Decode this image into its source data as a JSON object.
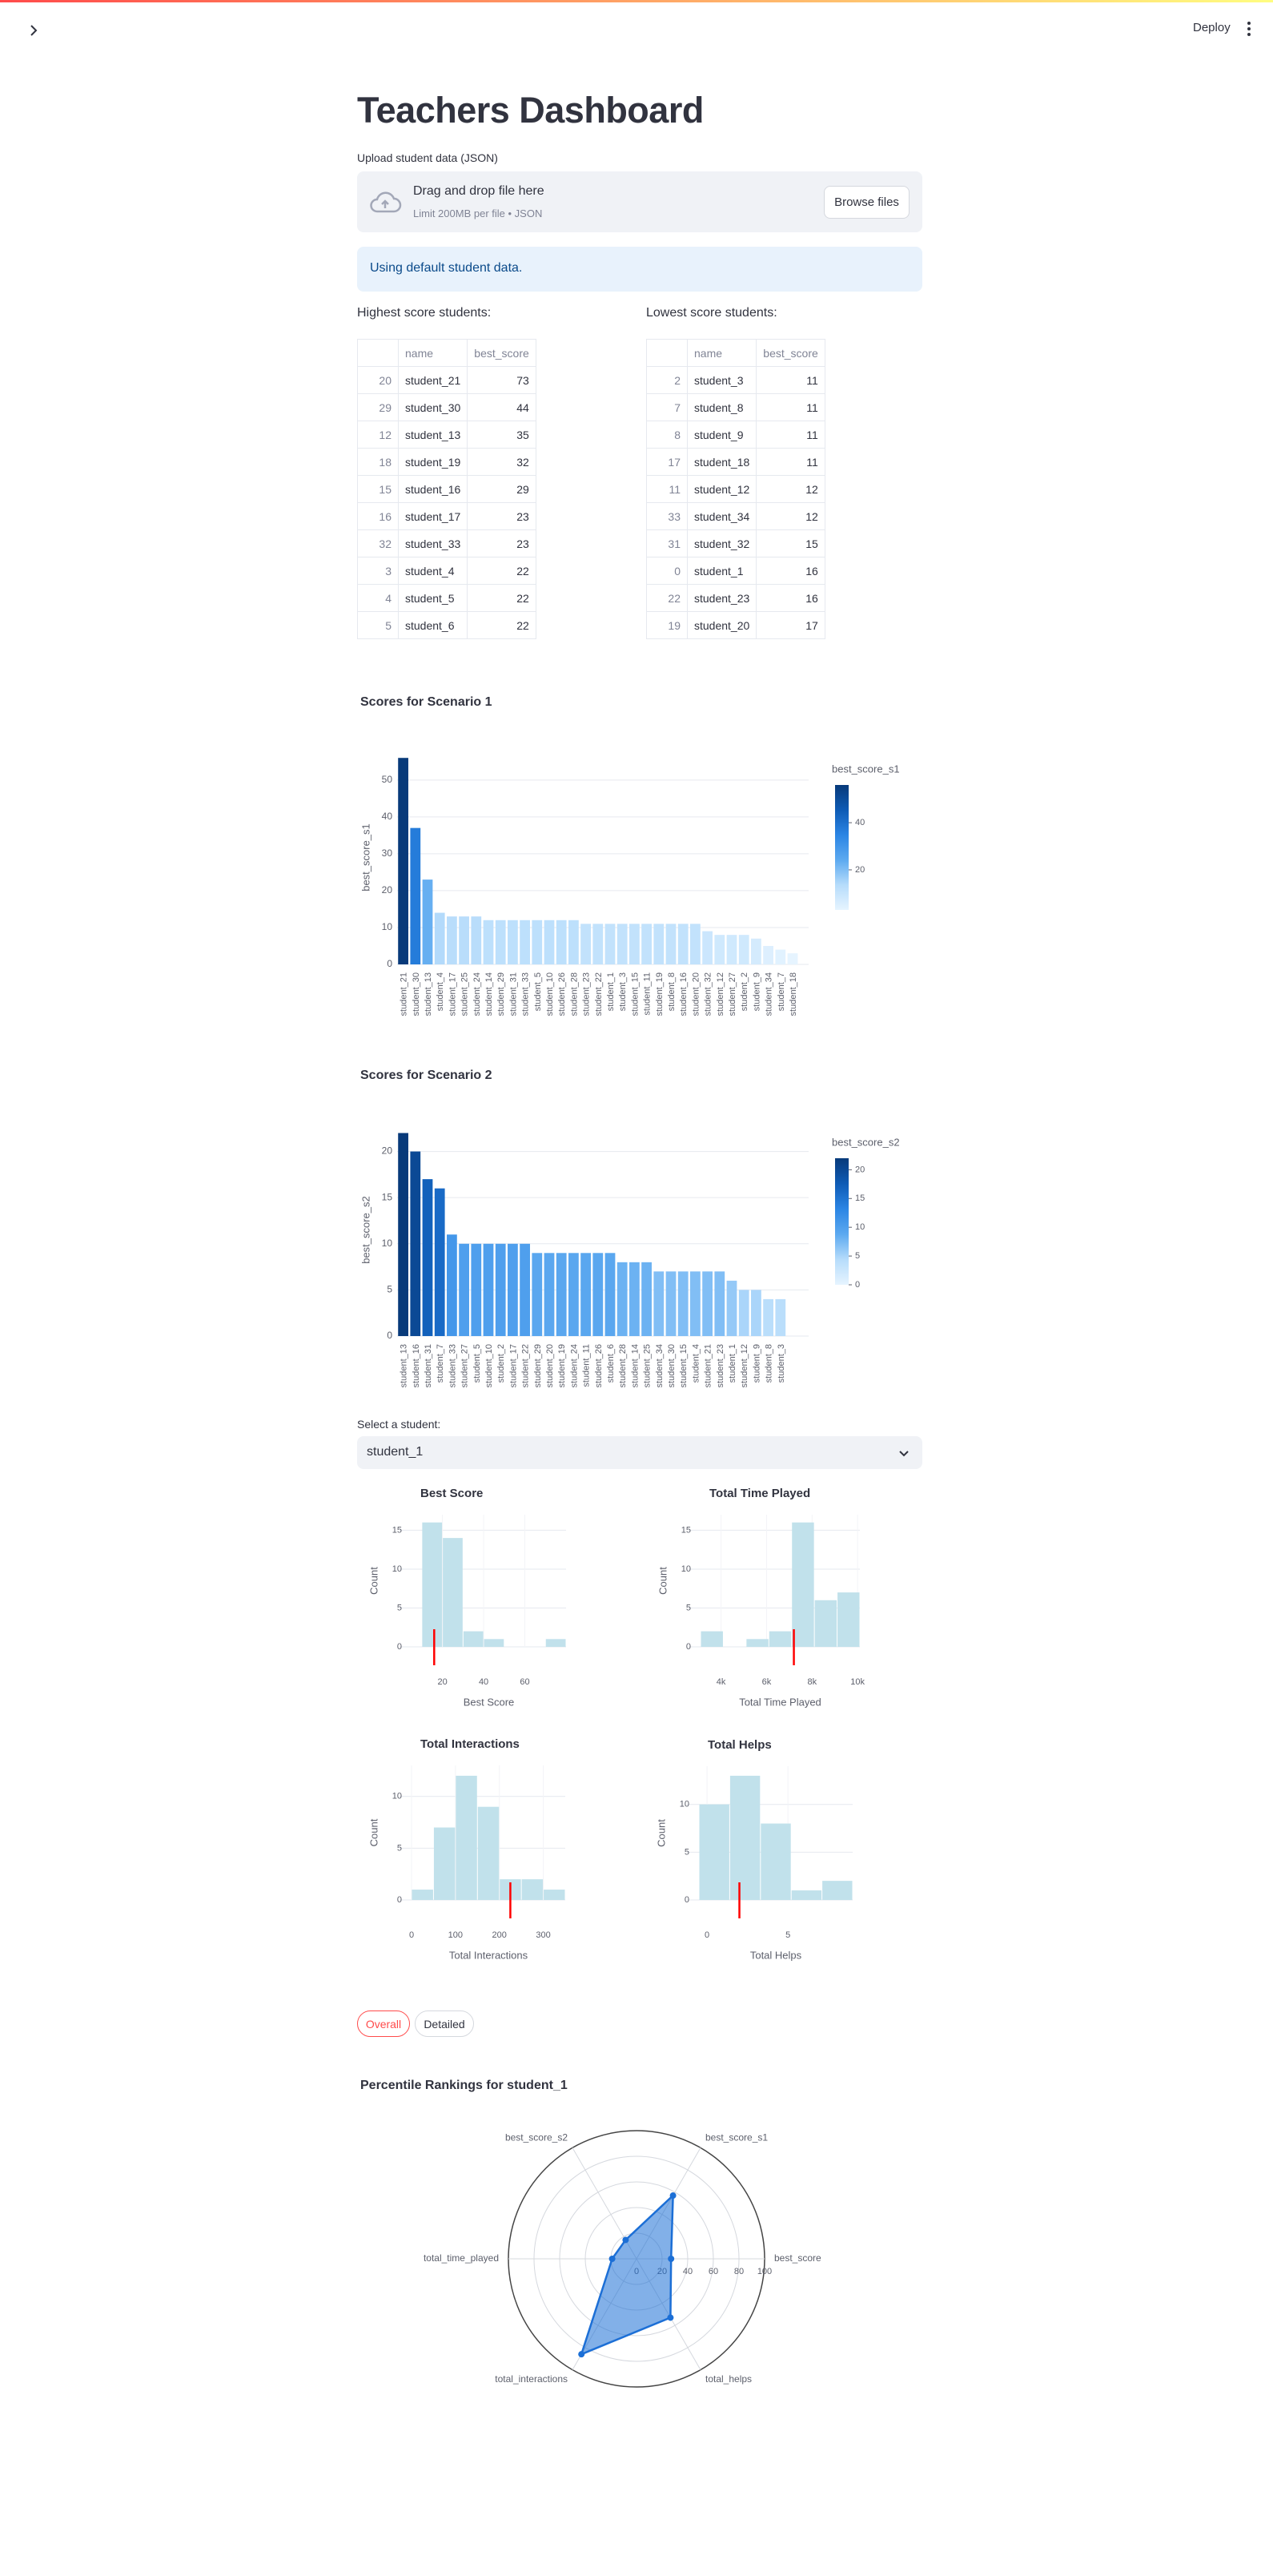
{
  "header": {
    "deploy": "Deploy"
  },
  "title": "Teachers Dashboard",
  "uploader": {
    "label": "Upload student data (JSON)",
    "drop_text": "Drag and drop file here",
    "limit": "Limit 200MB per file • JSON",
    "button": "Browse files"
  },
  "info": "Using default student data.",
  "tables": [
    {
      "caption": "Highest score students:",
      "columns": [
        "name",
        "best_score"
      ],
      "rows": [
        [
          20,
          "student_21",
          73
        ],
        [
          29,
          "student_30",
          44
        ],
        [
          12,
          "student_13",
          35
        ],
        [
          18,
          "student_19",
          32
        ],
        [
          15,
          "student_16",
          29
        ],
        [
          16,
          "student_17",
          23
        ],
        [
          32,
          "student_33",
          23
        ],
        [
          3,
          "student_4",
          22
        ],
        [
          4,
          "student_5",
          22
        ],
        [
          5,
          "student_6",
          22
        ]
      ]
    },
    {
      "caption": "Lowest score students:",
      "columns": [
        "name",
        "best_score"
      ],
      "rows": [
        [
          2,
          "student_3",
          11
        ],
        [
          7,
          "student_8",
          11
        ],
        [
          8,
          "student_9",
          11
        ],
        [
          17,
          "student_18",
          11
        ],
        [
          11,
          "student_12",
          12
        ],
        [
          33,
          "student_34",
          12
        ],
        [
          31,
          "student_32",
          15
        ],
        [
          0,
          "student_1",
          16
        ],
        [
          22,
          "student_23",
          16
        ],
        [
          19,
          "student_20",
          17
        ]
      ]
    }
  ],
  "charts": [
    {
      "type": "bar",
      "title": "Scores for Scenario 1",
      "ylabel": "best_score_s1",
      "categories": [
        "student_21",
        "student_30",
        "student_13",
        "student_4",
        "student_17",
        "student_25",
        "student_24",
        "student_14",
        "student_29",
        "student_31",
        "student_33",
        "student_5",
        "student_10",
        "student_26",
        "student_28",
        "student_23",
        "student_22",
        "student_1",
        "student_3",
        "student_15",
        "student_11",
        "student_19",
        "student_8",
        "student_16",
        "student_20",
        "student_32",
        "student_12",
        "student_27",
        "student_2",
        "student_9",
        "student_34",
        "student_7",
        "student_18"
      ],
      "values": [
        56,
        37,
        23,
        14,
        13,
        13,
        13,
        12,
        12,
        12,
        12,
        12,
        12,
        12,
        12,
        11,
        11,
        11,
        11,
        11,
        11,
        11,
        11,
        11,
        11,
        9,
        8,
        8,
        8,
        7,
        5,
        4,
        3
      ],
      "ylim": [
        0,
        58
      ],
      "yticks": [
        0,
        10,
        20,
        30,
        40,
        50
      ],
      "grid": true,
      "colorbar": {
        "title": "best_score_s1",
        "clim": [
          3,
          56
        ],
        "ticks": [
          20,
          40
        ],
        "colorscale": [
          "#e6f4ff",
          "#b6dcfb",
          "#5ca9f0",
          "#2b85e4",
          "#0e5bb5",
          "#083a7a"
        ]
      }
    },
    {
      "type": "bar",
      "title": "Scores for Scenario 2",
      "ylabel": "best_score_s2",
      "categories": [
        "student_13",
        "student_16",
        "student_31",
        "student_7",
        "student_33",
        "student_27",
        "student_5",
        "student_10",
        "student_2",
        "student_17",
        "student_22",
        "student_29",
        "student_20",
        "student_19",
        "student_24",
        "student_11",
        "student_26",
        "student_6",
        "student_28",
        "student_14",
        "student_25",
        "student_34",
        "student_30",
        "student_15",
        "student_4",
        "student_21",
        "student_23",
        "student_1",
        "student_12",
        "student_9",
        "student_8",
        "student_3"
      ],
      "values": [
        22,
        20,
        17,
        16,
        11,
        10,
        10,
        10,
        10,
        10,
        10,
        9,
        9,
        9,
        9,
        9,
        9,
        9,
        8,
        8,
        8,
        7,
        7,
        7,
        7,
        7,
        7,
        6,
        5,
        5,
        4,
        4
      ],
      "ylim": [
        0,
        23
      ],
      "yticks": [
        0,
        5,
        10,
        15,
        20
      ],
      "grid": true,
      "colorbar": {
        "title": "best_score_s2",
        "clim": [
          0,
          22
        ],
        "ticks": [
          0,
          5,
          10,
          15,
          20
        ],
        "colorscale": [
          "#e6f4ff",
          "#b6dcfb",
          "#5ca9f0",
          "#2b85e4",
          "#0e5bb5",
          "#083a7a"
        ]
      }
    }
  ],
  "select": {
    "label": "Select a student:",
    "value": "student_1"
  },
  "histograms": [
    {
      "type": "histogram",
      "title": "Best Score",
      "xlabel": "Best Score",
      "ylabel": "Count",
      "bins": [
        10,
        20,
        30,
        40,
        50,
        60,
        70,
        80
      ],
      "values": [
        16,
        14,
        2,
        1,
        0,
        0,
        1
      ],
      "xlim": [
        5,
        80
      ],
      "xticks": [
        20,
        40,
        60
      ],
      "ylim": [
        0,
        17
      ],
      "yticks": [
        0,
        5,
        10,
        15
      ],
      "marker_value": 16,
      "color": "#c1e1eb",
      "marker_color": "#ff0000"
    },
    {
      "type": "histogram",
      "title": "Total Time Played",
      "xlabel": "Total Time Played",
      "ylabel": "Count",
      "bins": [
        3100,
        4100,
        5100,
        6100,
        7100,
        8100,
        9100,
        10100
      ],
      "values": [
        2,
        0,
        1,
        2,
        16,
        6,
        7
      ],
      "xlim": [
        3100,
        10100
      ],
      "xticks": [
        {
          "value": 4000,
          "label": "4k"
        },
        {
          "value": 6000,
          "label": "6k"
        },
        {
          "value": 8000,
          "label": "8k"
        },
        {
          "value": 10000,
          "label": "10k"
        }
      ],
      "ylim": [
        0,
        17
      ],
      "yticks": [
        0,
        5,
        10,
        15
      ],
      "marker_value": 7200,
      "color": "#c1e1eb",
      "marker_color": "#ff0000"
    },
    {
      "type": "histogram",
      "title": "Total Interactions",
      "xlabel": "Total Interactions",
      "ylabel": "Count",
      "bins": [
        0,
        50,
        100,
        150,
        200,
        250,
        300,
        350
      ],
      "values": [
        1,
        7,
        12,
        9,
        2,
        2,
        1
      ],
      "xlim": [
        0,
        350
      ],
      "xticks": [
        0,
        100,
        200,
        300
      ],
      "ylim": [
        0,
        13
      ],
      "yticks": [
        0,
        5,
        10
      ],
      "marker_value": 225,
      "color": "#c1e1eb",
      "marker_color": "#ff0000"
    },
    {
      "type": "histogram",
      "title": "Total Helps",
      "xlabel": "Total Helps",
      "ylabel": "Count",
      "bins": [
        -0.5,
        1.4,
        3.3,
        5.2,
        7.1,
        9
      ],
      "values": [
        10,
        13,
        8,
        1,
        2
      ],
      "xlim": [
        -0.5,
        9
      ],
      "xticks": [
        0,
        5
      ],
      "ylim": [
        0,
        14
      ],
      "yticks": [
        0,
        5,
        10
      ],
      "marker_value": 2,
      "color": "#c1e1eb",
      "marker_color": "#ff0000"
    }
  ],
  "tabs": [
    "Overall",
    "Detailed"
  ],
  "radar": {
    "type": "radar",
    "title": "Percentile Rankings for student_1",
    "axes": [
      "best_score",
      "best_score_s1",
      "best_score_s2",
      "total_time_played",
      "total_interactions",
      "total_helps"
    ],
    "values": [
      27,
      57,
      17,
      19,
      86,
      53
    ],
    "rlim": [
      0,
      100
    ],
    "rticks": [
      0,
      20,
      40,
      60,
      80,
      100
    ],
    "color": "#1c6fd6"
  }
}
